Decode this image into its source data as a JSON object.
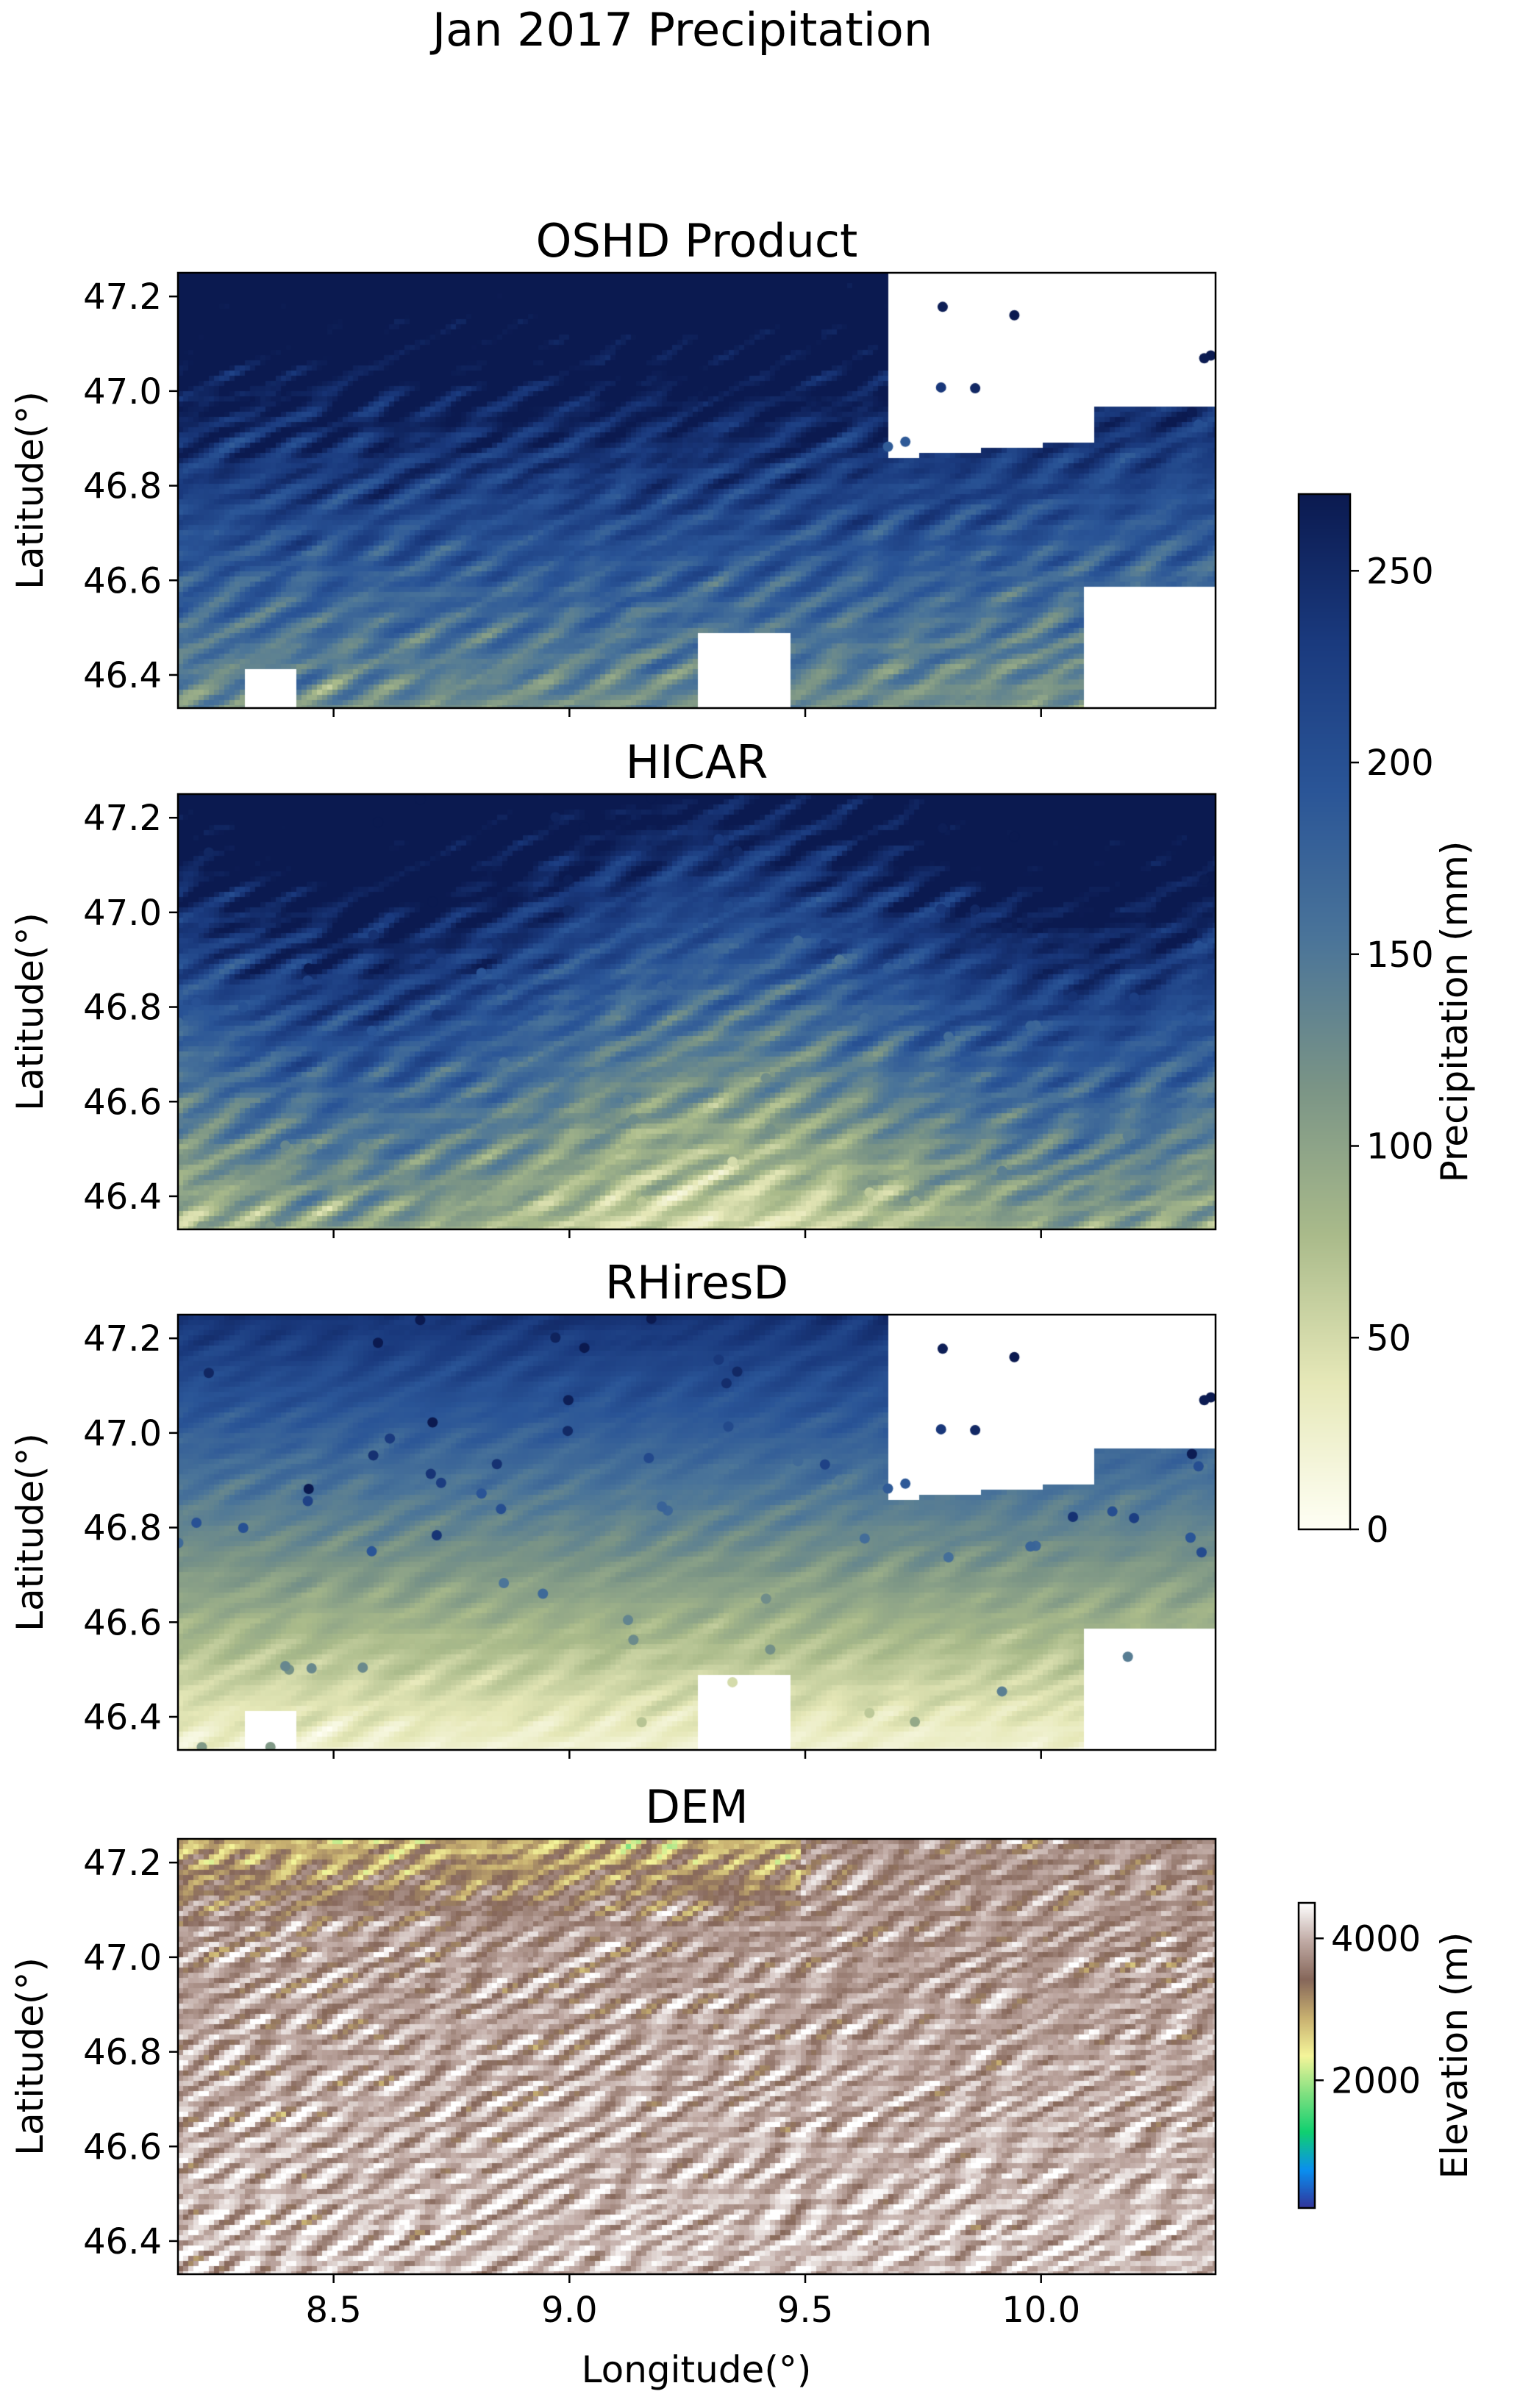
{
  "chart_data": {
    "title": "Jan 2017 Precipitation",
    "type": "heatmap",
    "xlabel": "Longitude(°)",
    "ylabel": "Latitude(°)",
    "xlim": [
      8.17,
      10.37
    ],
    "ylim": [
      46.33,
      47.25
    ],
    "xticks": [
      "8.5",
      "9.0",
      "9.5",
      "10.0"
    ],
    "xtick_values": [
      8.5,
      9.0,
      9.5,
      10.0
    ],
    "yticks": [
      "46.4",
      "46.6",
      "46.8",
      "47.0",
      "47.2"
    ],
    "ytick_values": [
      46.4,
      46.6,
      46.8,
      47.0,
      47.2
    ],
    "panels": [
      {
        "title": "OSHD Product",
        "field": "precipitation",
        "masked": true,
        "stations": true
      },
      {
        "title": "HICAR",
        "field": "precipitation",
        "masked": false,
        "stations": true
      },
      {
        "title": "RHiresD",
        "field": "precipitation",
        "masked": true,
        "stations": true
      },
      {
        "title": "DEM",
        "field": "elevation",
        "masked": false,
        "stations": false
      }
    ],
    "colorbars": [
      {
        "label": "Precipitation (mm)",
        "range": [
          0,
          270
        ],
        "ticks": [
          "0",
          "50",
          "100",
          "150",
          "200",
          "250"
        ],
        "tick_values": [
          0,
          50,
          100,
          150,
          200,
          250
        ],
        "colors": [
          "#fffff5",
          "#e6e8b8",
          "#a9ba8a",
          "#7a9486",
          "#4a7499",
          "#2a5597",
          "#1a3a7e",
          "#0b1a50"
        ]
      },
      {
        "label": "Elevation (m)",
        "range": [
          200,
          4500
        ],
        "ticks": [
          "2000",
          "4000"
        ],
        "tick_values": [
          2000,
          4000
        ],
        "colors": [
          "#333399",
          "#0a8ff0",
          "#10d070",
          "#80e080",
          "#f5f59a",
          "#c8b070",
          "#86675a",
          "#c0aaa4",
          "#ffffff"
        ]
      }
    ]
  }
}
